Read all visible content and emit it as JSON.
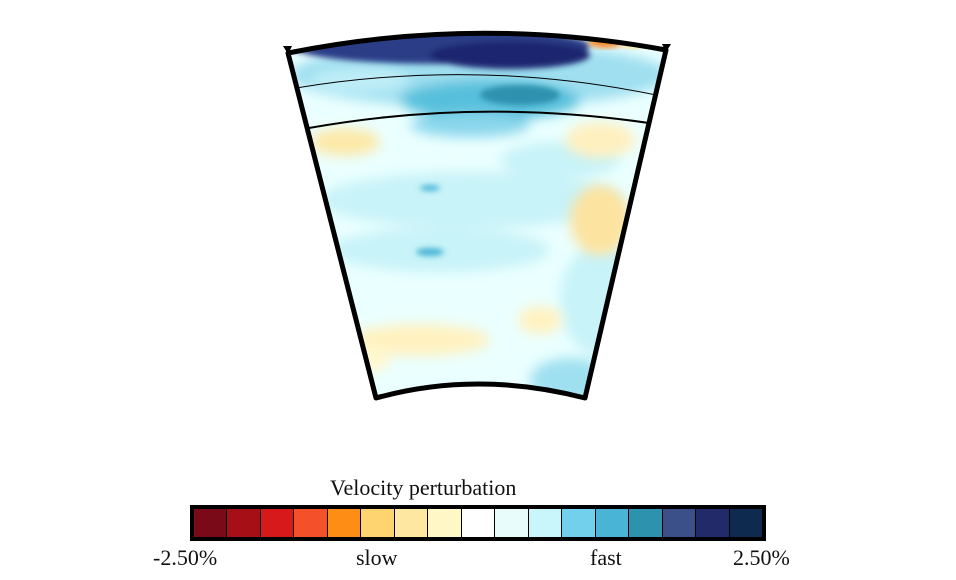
{
  "colorbar": {
    "title": "Velocity perturbation",
    "min_label": "-2.50%",
    "slow_label": "slow",
    "fast_label": "fast",
    "max_label": "2.50%",
    "range": [
      -2.5,
      2.5
    ],
    "colors": [
      "#7a0a18",
      "#a50f15",
      "#d7191c",
      "#f4502a",
      "#fd8d14",
      "#fdd470",
      "#fee7a0",
      "#fff8c6",
      "#ffffff",
      "#e8fcfc",
      "#c8f6fa",
      "#72d0ec",
      "#4ab4d6",
      "#2d92ae",
      "#3b4f88",
      "#232a6a",
      "#0e2a4e"
    ]
  },
  "section": {
    "fill_color": "#eaffff",
    "boundary_color": "#000000"
  }
}
